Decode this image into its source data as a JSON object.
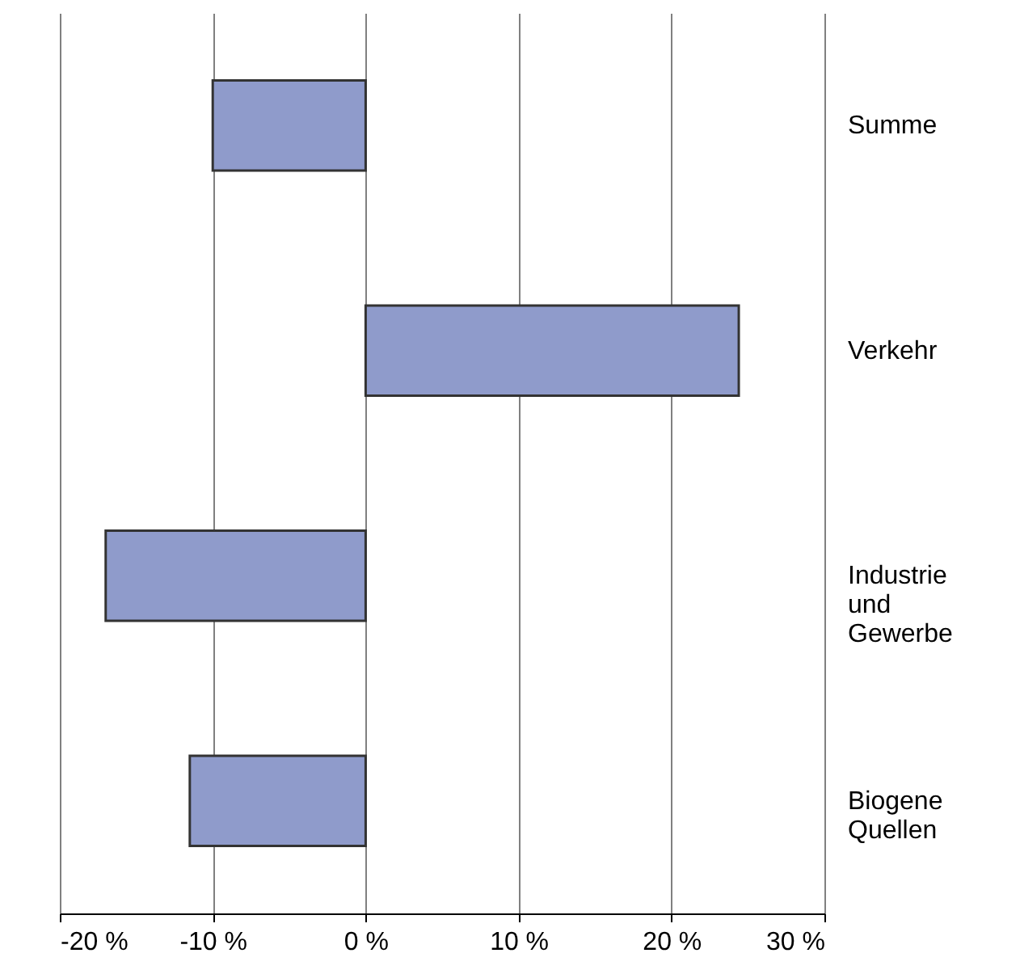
{
  "chart_data": {
    "type": "bar",
    "orientation": "horizontal",
    "categories": [
      "Summe",
      "Verkehr",
      "Industrie und Gewerbe",
      "Biogene Quellen"
    ],
    "values": [
      -10,
      24.4,
      -17,
      -11.5
    ],
    "color": "#8f9bcb",
    "xlim": [
      -20,
      30
    ],
    "xticks": [
      {
        "value": -20,
        "label": "-20 %"
      },
      {
        "value": -10,
        "label": "-10 %"
      },
      {
        "value": 0,
        "label": "0 %"
      },
      {
        "value": 10,
        "label": "10 %"
      },
      {
        "value": 20,
        "label": "20 %"
      },
      {
        "value": 30,
        "label": "30 %"
      }
    ],
    "grid": "x"
  }
}
